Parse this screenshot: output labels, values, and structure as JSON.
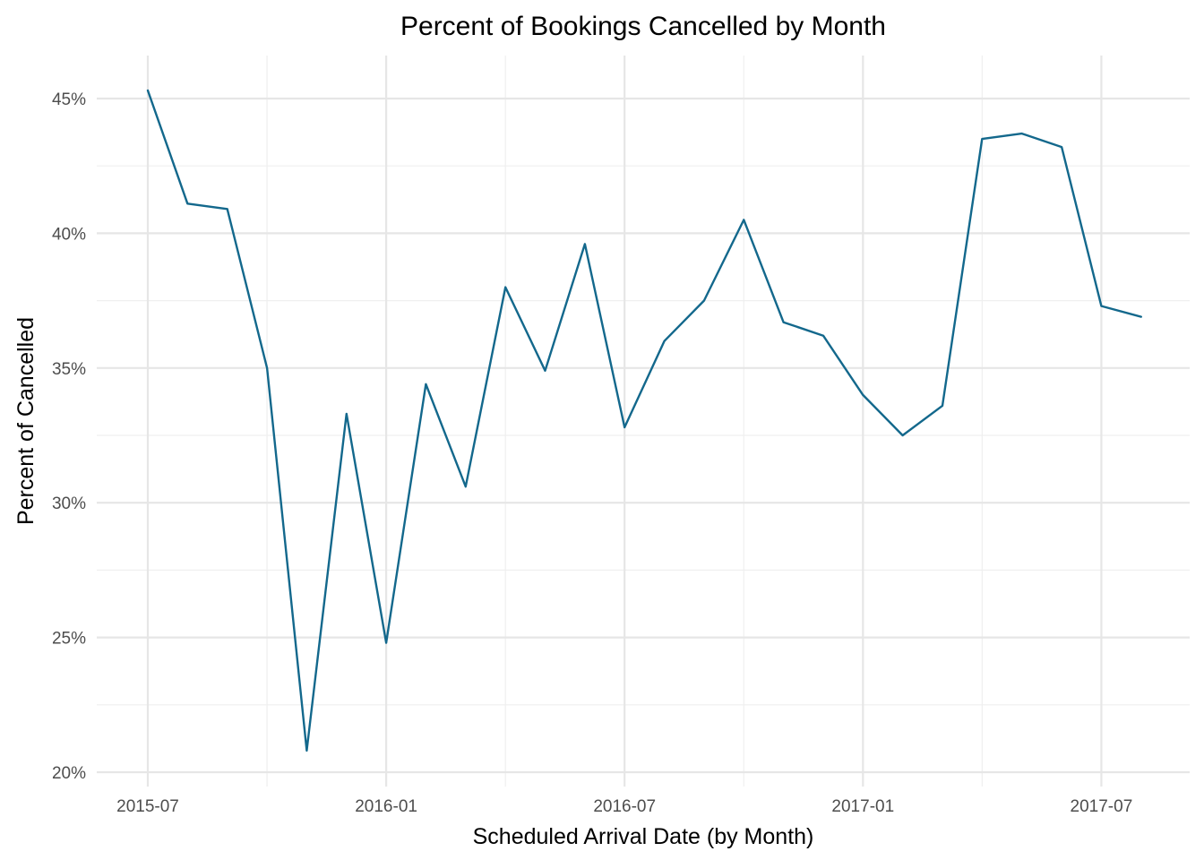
{
  "chart_data": {
    "type": "line",
    "title": "Percent of Bookings Cancelled by Month",
    "xlabel": "Scheduled Arrival Date (by Month)",
    "ylabel": "Percent of Cancelled",
    "x": [
      "2015-07",
      "2015-08",
      "2015-09",
      "2015-10",
      "2015-11",
      "2015-12",
      "2016-01",
      "2016-02",
      "2016-03",
      "2016-04",
      "2016-05",
      "2016-06",
      "2016-07",
      "2016-08",
      "2016-09",
      "2016-10",
      "2016-11",
      "2016-12",
      "2017-01",
      "2017-02",
      "2017-03",
      "2017-04",
      "2017-05",
      "2017-06",
      "2017-07",
      "2017-08"
    ],
    "series": [
      {
        "values": [
          45.3,
          41.1,
          40.9,
          35.0,
          20.8,
          33.3,
          24.8,
          34.4,
          30.6,
          38.0,
          34.9,
          39.6,
          32.8,
          36.0,
          37.5,
          40.5,
          36.7,
          36.2,
          34.0,
          32.5,
          33.6,
          43.5,
          43.7,
          43.2,
          37.3,
          36.9
        ],
        "color": "#13688c"
      }
    ],
    "ylim": [
      20,
      45
    ],
    "y_ticks": [
      {
        "value": 20,
        "label": "20%"
      },
      {
        "value": 25,
        "label": "25%"
      },
      {
        "value": 30,
        "label": "30%"
      },
      {
        "value": 35,
        "label": "35%"
      },
      {
        "value": 40,
        "label": "40%"
      },
      {
        "value": 45,
        "label": "45%"
      }
    ],
    "x_ticks": [
      {
        "value": "2015-07",
        "label": "2015-07"
      },
      {
        "value": "2016-01",
        "label": "2016-01"
      },
      {
        "value": "2016-07",
        "label": "2016-07"
      },
      {
        "value": "2017-01",
        "label": "2017-01"
      },
      {
        "value": "2017-07",
        "label": "2017-07"
      }
    ],
    "grid": true,
    "legend": "none"
  }
}
